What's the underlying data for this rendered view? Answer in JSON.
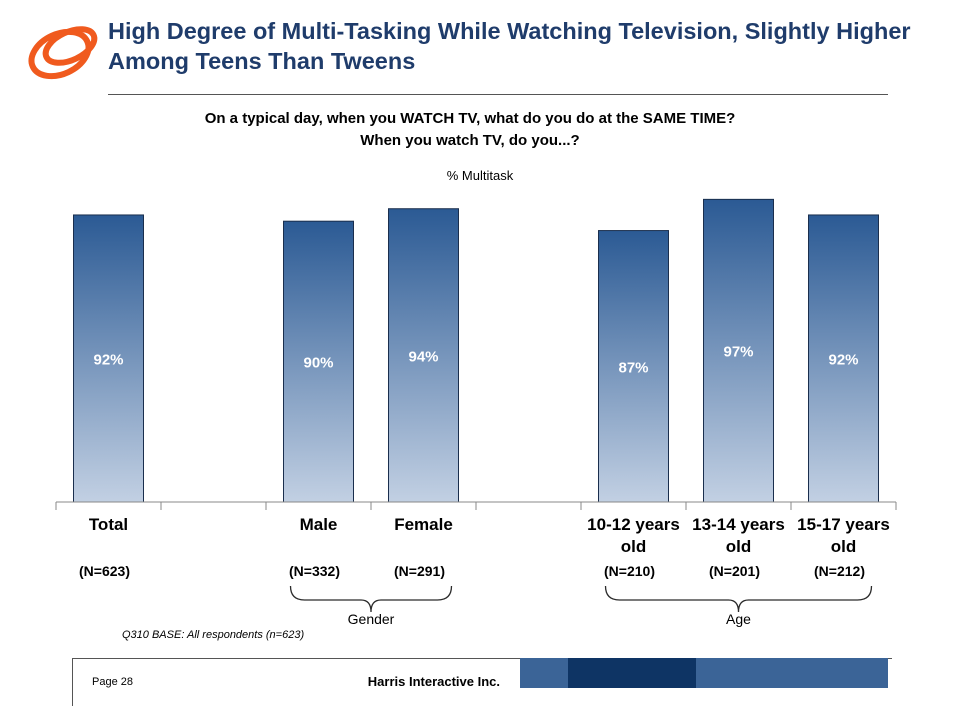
{
  "title": "High Degree of Multi-Tasking While Watching Television, Slightly Higher Among Teens Than Tweens",
  "question_line1": "On a typical day, when you WATCH TV, what do you do at the SAME TIME?",
  "question_line2": "When you watch TV, do you...?",
  "base_note": "Q310 BASE:  All respondents (n=623)",
  "footer": {
    "page": "Page 28",
    "company": "Harris Interactive Inc."
  },
  "colors": {
    "title": "#1f3c6b",
    "bar_top": "#2b5a94",
    "bar_bottom": "#c2d0e3",
    "band_light": "#3b6497",
    "band_dark": "#0e3464",
    "logo": "#f05a1e"
  },
  "icons": {
    "logo": "orange-ring-logo"
  },
  "chart_data": {
    "type": "bar",
    "ylabel": "% Multitask",
    "ylim": [
      0,
      100
    ],
    "grid": false,
    "categories": [
      "Total",
      "",
      "Male",
      "Female",
      "",
      "10-12 years old",
      "13-14 years old",
      "15-17 years old"
    ],
    "values": [
      92,
      null,
      90,
      94,
      null,
      87,
      97,
      92
    ],
    "value_labels": [
      "92%",
      "",
      "90%",
      "94%",
      "",
      "87%",
      "97%",
      "92%"
    ],
    "sample_sizes": [
      "(N=623)",
      "",
      "(N=332)",
      "(N=291)",
      "",
      "(N=210)",
      "(N=201)",
      "(N=212)"
    ],
    "groups": [
      {
        "label": "Gender",
        "categories": [
          "Male",
          "Female"
        ]
      },
      {
        "label": "Age",
        "categories": [
          "10-12 years old",
          "13-14 years old",
          "15-17 years old"
        ]
      }
    ]
  }
}
